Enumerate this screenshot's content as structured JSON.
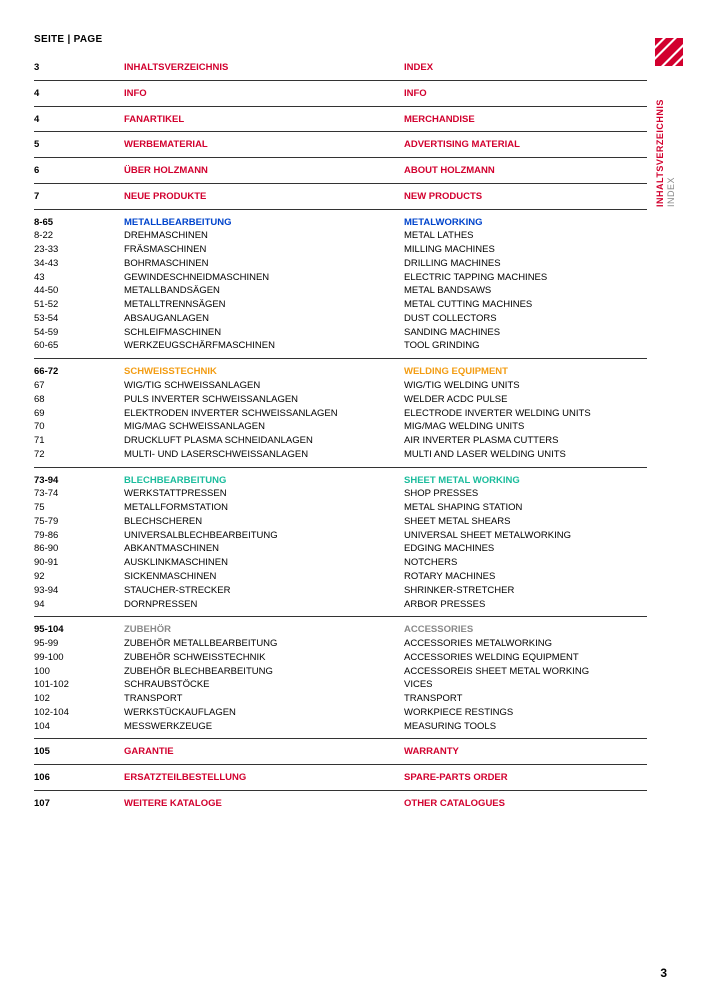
{
  "header": "SEITE | PAGE",
  "sideTab": {
    "line1": "INHALTSVERZEICHNIS",
    "line2": "INDEX"
  },
  "pageNumber": "3",
  "colors": {
    "red": "#d2002e",
    "blue": "#0044cc",
    "orange": "#f39c12",
    "teal": "#1abc9c",
    "grey": "#888888",
    "rule": "#333333",
    "bg": "#ffffff"
  },
  "sections": [
    {
      "type": "single",
      "page": "3",
      "de": "INHALTSVERZEICHNIS",
      "en": "INDEX",
      "color": "red"
    },
    {
      "type": "single",
      "page": "4",
      "de": "INFO",
      "en": "INFO",
      "color": "red"
    },
    {
      "type": "single",
      "page": "4",
      "de": "FANARTIKEL",
      "en": "MERCHANDISE",
      "color": "red"
    },
    {
      "type": "single",
      "page": "5",
      "de": "WERBEMATERIAL",
      "en": "ADVERTISING MATERIAL",
      "color": "red"
    },
    {
      "type": "single",
      "page": "6",
      "de": "ÜBER HOLZMANN",
      "en": "ABOUT HOLZMANN",
      "color": "red"
    },
    {
      "type": "single",
      "page": "7",
      "de": "NEUE PRODUKTE",
      "en": "NEW PRODUCTS",
      "color": "red"
    },
    {
      "type": "group",
      "header": {
        "page": "8-65",
        "de": "METALLBEARBEITUNG",
        "en": "METALWORKING",
        "color": "blue"
      },
      "rows": [
        {
          "page": "8-22",
          "de": "DREHMASCHINEN",
          "en": "METAL LATHES"
        },
        {
          "page": "23-33",
          "de": "FRÄSMASCHINEN",
          "en": "MILLING MACHINES"
        },
        {
          "page": "34-43",
          "de": "BOHRMASCHINEN",
          "en": "DRILLING MACHINES"
        },
        {
          "page": "43",
          "de": "GEWINDESCHNEIDMASCHINEN",
          "en": "ELECTRIC TAPPING MACHINES"
        },
        {
          "page": "44-50",
          "de": "METALLBANDSÄGEN",
          "en": "METAL BANDSAWS"
        },
        {
          "page": "51-52",
          "de": "METALLTRENNSÄGEN",
          "en": "METAL CUTTING MACHINES"
        },
        {
          "page": "53-54",
          "de": "ABSAUGANLAGEN",
          "en": "DUST COLLECTORS"
        },
        {
          "page": "54-59",
          "de": "SCHLEIFMASCHINEN",
          "en": "SANDING MACHINES"
        },
        {
          "page": "60-65",
          "de": "WERKZEUGSCHÄRFMASCHINEN",
          "en": "TOOL GRINDING"
        }
      ]
    },
    {
      "type": "group",
      "header": {
        "page": "66-72",
        "de": "SCHWEISSTECHNIK",
        "en": "WELDING EQUIPMENT",
        "color": "orange"
      },
      "rows": [
        {
          "page": "67",
          "de": "WIG/TIG SCHWEISSANLAGEN",
          "en": "WIG/TIG WELDING UNITS"
        },
        {
          "page": "68",
          "de": "PULS INVERTER SCHWEISSANLAGEN",
          "en": "WELDER ACDC PULSE"
        },
        {
          "page": "69",
          "de": "ELEKTRODEN INVERTER SCHWEISSANLAGEN",
          "en": "ELECTRODE INVERTER WELDING UNITS"
        },
        {
          "page": "70",
          "de": "MIG/MAG SCHWEISSANLAGEN",
          "en": "MIG/MAG WELDING UNITS"
        },
        {
          "page": "71",
          "de": "DRUCKLUFT PLASMA SCHNEIDANLAGEN",
          "en": "AIR INVERTER PLASMA CUTTERS"
        },
        {
          "page": "72",
          "de": "MULTI- UND LASERSCHWEISSANLAGEN",
          "en": "MULTI AND LASER WELDING UNITS"
        }
      ]
    },
    {
      "type": "group",
      "header": {
        "page": "73-94",
        "de": "BLECHBEARBEITUNG",
        "en": "SHEET METAL WORKING",
        "color": "teal"
      },
      "rows": [
        {
          "page": "73-74",
          "de": "WERKSTATTPRESSEN",
          "en": "SHOP PRESSES"
        },
        {
          "page": "75",
          "de": "METALLFORMSTATION",
          "en": "METAL SHAPING STATION"
        },
        {
          "page": "75-79",
          "de": "BLECHSCHEREN",
          "en": "SHEET METAL SHEARS"
        },
        {
          "page": "79-86",
          "de": "UNIVERSALBLECHBEARBEITUNG",
          "en": "UNIVERSAL SHEET METALWORKING"
        },
        {
          "page": "86-90",
          "de": "ABKANTMASCHINEN",
          "en": "EDGING MACHINES"
        },
        {
          "page": "90-91",
          "de": "AUSKLINKMASCHINEN",
          "en": "NOTCHERS"
        },
        {
          "page": "92",
          "de": "SICKENMASCHINEN",
          "en": "ROTARY MACHINES"
        },
        {
          "page": "93-94",
          "de": "STAUCHER-STRECKER",
          "en": "SHRINKER-STRETCHER"
        },
        {
          "page": "94",
          "de": "DORNPRESSEN",
          "en": "ARBOR PRESSES"
        }
      ]
    },
    {
      "type": "group",
      "header": {
        "page": "95-104",
        "de": "ZUBEHÖR",
        "en": "ACCESSORIES",
        "color": "grey"
      },
      "rows": [
        {
          "page": "95-99",
          "de": "ZUBEHÖR METALLBEARBEITUNG",
          "en": "ACCESSORIES METALWORKING"
        },
        {
          "page": "99-100",
          "de": "ZUBEHÖR SCHWEISSTECHNIK",
          "en": "ACCESSORIES WELDING EQUIPMENT"
        },
        {
          "page": "100",
          "de": "ZUBEHÖR BLECHBEARBEITUNG",
          "en": "ACCESSOREIS SHEET METAL WORKING"
        },
        {
          "page": "101-102",
          "de": "SCHRAUBSTÖCKE",
          "en": "VICES"
        },
        {
          "page": "102",
          "de": "TRANSPORT",
          "en": "TRANSPORT"
        },
        {
          "page": "102-104",
          "de": "WERKSTÜCKAUFLAGEN",
          "en": "WORKPIECE RESTINGS"
        },
        {
          "page": "104",
          "de": "MESSWERKZEUGE",
          "en": "MEASURING TOOLS"
        }
      ]
    },
    {
      "type": "single",
      "page": "105",
      "de": "GARANTIE",
      "en": "WARRANTY",
      "color": "red"
    },
    {
      "type": "single",
      "page": "106",
      "de": "ERSATZTEILBESTELLUNG",
      "en": "SPARE-PARTS ORDER",
      "color": "red"
    },
    {
      "type": "single",
      "page": "107",
      "de": "WEITERE KATALOGE",
      "en": "OTHER CATALOGUES",
      "color": "red",
      "last": true
    }
  ]
}
